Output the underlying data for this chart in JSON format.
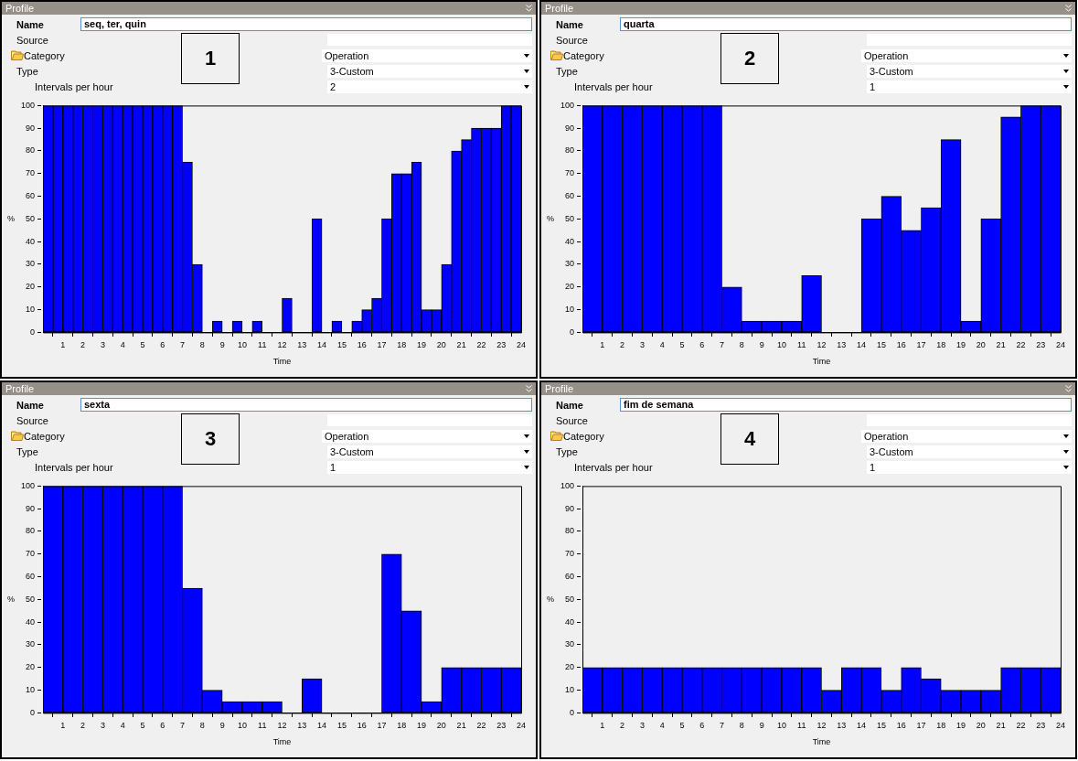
{
  "chart_data": [
    {
      "type": "histogram",
      "xlabel": "Time",
      "ylabel": "%",
      "color": "#0000ff",
      "grid": false,
      "xlim": [
        0,
        24
      ],
      "ylim": [
        0,
        100
      ],
      "xticks": [
        1,
        2,
        3,
        4,
        5,
        6,
        7,
        8,
        9,
        10,
        11,
        12,
        13,
        14,
        15,
        16,
        17,
        18,
        19,
        20,
        21,
        22,
        23,
        24
      ],
      "yticks": [
        0,
        10,
        20,
        30,
        40,
        50,
        60,
        70,
        80,
        90,
        100
      ],
      "bins": [
        0,
        0.5,
        1,
        1.5,
        2,
        2.5,
        3,
        3.5,
        4,
        4.5,
        5,
        5.5,
        6,
        6.5,
        7,
        7.5,
        8,
        8.5,
        9,
        9.5,
        10,
        10.5,
        11,
        11.5,
        12,
        12.5,
        13,
        13.5,
        14,
        14.5,
        15,
        15.5,
        16,
        16.5,
        17,
        17.5,
        18,
        18.5,
        19,
        19.5,
        20,
        20.5,
        21,
        21.5,
        22,
        22.5,
        23,
        23.5,
        24
      ],
      "values": [
        100,
        100,
        100,
        100,
        100,
        100,
        100,
        100,
        100,
        100,
        100,
        100,
        100,
        100,
        75,
        30,
        0,
        5,
        0,
        5,
        0,
        5,
        0,
        0,
        15,
        0,
        0,
        50,
        0,
        5,
        0,
        5,
        10,
        15,
        50,
        70,
        70,
        75,
        10,
        10,
        30,
        80,
        85,
        90,
        90,
        90,
        100,
        100
      ],
      "annotations": [
        "Profile",
        "Name",
        "seq, ter, quin",
        "Source",
        "Category",
        "Operation",
        "Type",
        "3-Custom",
        "Intervals per hour",
        "2",
        "1"
      ]
    },
    {
      "type": "histogram",
      "xlabel": "Time",
      "ylabel": "%",
      "color": "#0000ff",
      "grid": false,
      "xlim": [
        0,
        24
      ],
      "ylim": [
        0,
        100
      ],
      "xticks": [
        1,
        2,
        3,
        4,
        5,
        6,
        7,
        8,
        9,
        10,
        11,
        12,
        13,
        14,
        15,
        16,
        17,
        18,
        19,
        20,
        21,
        22,
        23,
        24
      ],
      "yticks": [
        0,
        10,
        20,
        30,
        40,
        50,
        60,
        70,
        80,
        90,
        100
      ],
      "bins": [
        0,
        1,
        2,
        3,
        4,
        5,
        6,
        7,
        8,
        9,
        10,
        11,
        12,
        13,
        14,
        15,
        16,
        17,
        18,
        19,
        20,
        21,
        22,
        23,
        24
      ],
      "values": [
        100,
        100,
        100,
        100,
        100,
        100,
        100,
        20,
        5,
        5,
        5,
        25,
        0,
        0,
        50,
        60,
        45,
        55,
        85,
        5,
        50,
        95,
        100,
        100
      ],
      "annotations": [
        "Profile",
        "Name",
        "quarta",
        "Source",
        "Category",
        "Operation",
        "Type",
        "3-Custom",
        "Intervals per hour",
        "1",
        "2"
      ]
    },
    {
      "type": "histogram",
      "xlabel": "Time",
      "ylabel": "%",
      "color": "#0000ff",
      "grid": false,
      "xlim": [
        0,
        24
      ],
      "ylim": [
        0,
        100
      ],
      "xticks": [
        1,
        2,
        3,
        4,
        5,
        6,
        7,
        8,
        9,
        10,
        11,
        12,
        13,
        14,
        15,
        16,
        17,
        18,
        19,
        20,
        21,
        22,
        23,
        24
      ],
      "yticks": [
        0,
        10,
        20,
        30,
        40,
        50,
        60,
        70,
        80,
        90,
        100
      ],
      "bins": [
        0,
        1,
        2,
        3,
        4,
        5,
        6,
        7,
        8,
        9,
        10,
        11,
        12,
        13,
        14,
        15,
        16,
        17,
        18,
        19,
        20,
        21,
        22,
        23,
        24
      ],
      "values": [
        100,
        100,
        100,
        100,
        100,
        100,
        100,
        55,
        10,
        5,
        5,
        5,
        0,
        15,
        0,
        0,
        0,
        70,
        45,
        5,
        20,
        20,
        20,
        20
      ],
      "annotations": [
        "Profile",
        "Name",
        "sexta",
        "Source",
        "Category",
        "Operation",
        "Type",
        "3-Custom",
        "Intervals per hour",
        "1",
        "3"
      ]
    },
    {
      "type": "histogram",
      "xlabel": "Time",
      "ylabel": "%",
      "color": "#0000ff",
      "grid": false,
      "xlim": [
        0,
        24
      ],
      "ylim": [
        0,
        100
      ],
      "xticks": [
        1,
        2,
        3,
        4,
        5,
        6,
        7,
        8,
        9,
        10,
        11,
        12,
        13,
        14,
        15,
        16,
        17,
        18,
        19,
        20,
        21,
        22,
        23,
        24
      ],
      "yticks": [
        0,
        10,
        20,
        30,
        40,
        50,
        60,
        70,
        80,
        90,
        100
      ],
      "bins": [
        0,
        1,
        2,
        3,
        4,
        5,
        6,
        7,
        8,
        9,
        10,
        11,
        12,
        13,
        14,
        15,
        16,
        17,
        18,
        19,
        20,
        21,
        22,
        23,
        24
      ],
      "values": [
        20,
        20,
        20,
        20,
        20,
        20,
        20,
        20,
        20,
        20,
        20,
        20,
        10,
        20,
        20,
        10,
        20,
        15,
        10,
        10,
        10,
        20,
        20,
        20
      ],
      "annotations": [
        "Profile",
        "Name",
        "fim de semana",
        "Source",
        "Category",
        "Operation",
        "Type",
        "3-Custom",
        "Intervals per hour",
        "1",
        "4"
      ]
    }
  ]
}
